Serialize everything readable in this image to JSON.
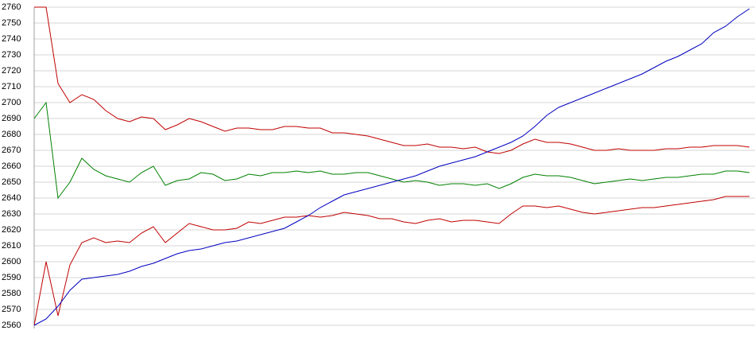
{
  "chart_data": {
    "type": "line",
    "ylim": [
      2560,
      2760
    ],
    "yticks": [
      2560,
      2570,
      2580,
      2590,
      2600,
      2610,
      2620,
      2630,
      2640,
      2650,
      2660,
      2670,
      2680,
      2690,
      2700,
      2710,
      2720,
      2730,
      2740,
      2750,
      2760
    ],
    "grid": true,
    "series": [
      {
        "color": "#c00000",
        "values": [
          2760,
          2760,
          2712,
          2700,
          2705,
          2702,
          2695,
          2690,
          2688,
          2691,
          2690,
          2683,
          2686,
          2690,
          2688,
          2685,
          2682,
          2684,
          2684,
          2683,
          2683,
          2685,
          2685,
          2684,
          2684,
          2681,
          2681,
          2680,
          2679,
          2677,
          2675,
          2673,
          2673,
          2674,
          2672,
          2672,
          2671,
          2672,
          2669,
          2668,
          2670,
          2674,
          2677,
          2675,
          2675,
          2674,
          2672,
          2670,
          2670,
          2671,
          2670,
          2670,
          2670,
          2671,
          2671,
          2672,
          2672,
          2673,
          2673,
          2673,
          2672
        ]
      },
      {
        "color": "#008000",
        "values": [
          2690,
          2700,
          2640,
          2650,
          2665,
          2658,
          2654,
          2652,
          2650,
          2656,
          2660,
          2648,
          2651,
          2652,
          2656,
          2655,
          2651,
          2652,
          2655,
          2654,
          2656,
          2656,
          2657,
          2656,
          2657,
          2655,
          2655,
          2656,
          2656,
          2654,
          2652,
          2650,
          2651,
          2650,
          2648,
          2649,
          2649,
          2648,
          2649,
          2646,
          2649,
          2653,
          2655,
          2654,
          2654,
          2653,
          2651,
          2649,
          2650,
          2651,
          2652,
          2651,
          2652,
          2653,
          2653,
          2654,
          2655,
          2655,
          2657,
          2657,
          2656
        ]
      },
      {
        "color": "#c00000",
        "values": [
          2560,
          2600,
          2566,
          2598,
          2612,
          2615,
          2612,
          2613,
          2612,
          2618,
          2622,
          2612,
          2618,
          2624,
          2622,
          2620,
          2620,
          2621,
          2625,
          2624,
          2626,
          2628,
          2628,
          2629,
          2628,
          2629,
          2631,
          2630,
          2629,
          2627,
          2627,
          2625,
          2624,
          2626,
          2627,
          2625,
          2626,
          2626,
          2625,
          2624,
          2630,
          2635,
          2635,
          2634,
          2635,
          2633,
          2631,
          2630,
          2631,
          2632,
          2633,
          2634,
          2634,
          2635,
          2636,
          2637,
          2638,
          2639,
          2641,
          2641,
          2641
        ]
      },
      {
        "color": "#0000c0",
        "values": [
          2560,
          2564,
          2572,
          2582,
          2589,
          2590,
          2591,
          2592,
          2594,
          2597,
          2599,
          2602,
          2605,
          2607,
          2608,
          2610,
          2612,
          2613,
          2615,
          2617,
          2619,
          2621,
          2625,
          2629,
          2634,
          2638,
          2642,
          2644,
          2646,
          2648,
          2650,
          2652,
          2654,
          2657,
          2660,
          2662,
          2664,
          2666,
          2669,
          2672,
          2675,
          2679,
          2685,
          2692,
          2697,
          2700,
          2703,
          2706,
          2709,
          2712,
          2715,
          2718,
          2722,
          2726,
          2729,
          2733,
          2737,
          2744,
          2748,
          2754,
          2759
        ]
      }
    ]
  }
}
